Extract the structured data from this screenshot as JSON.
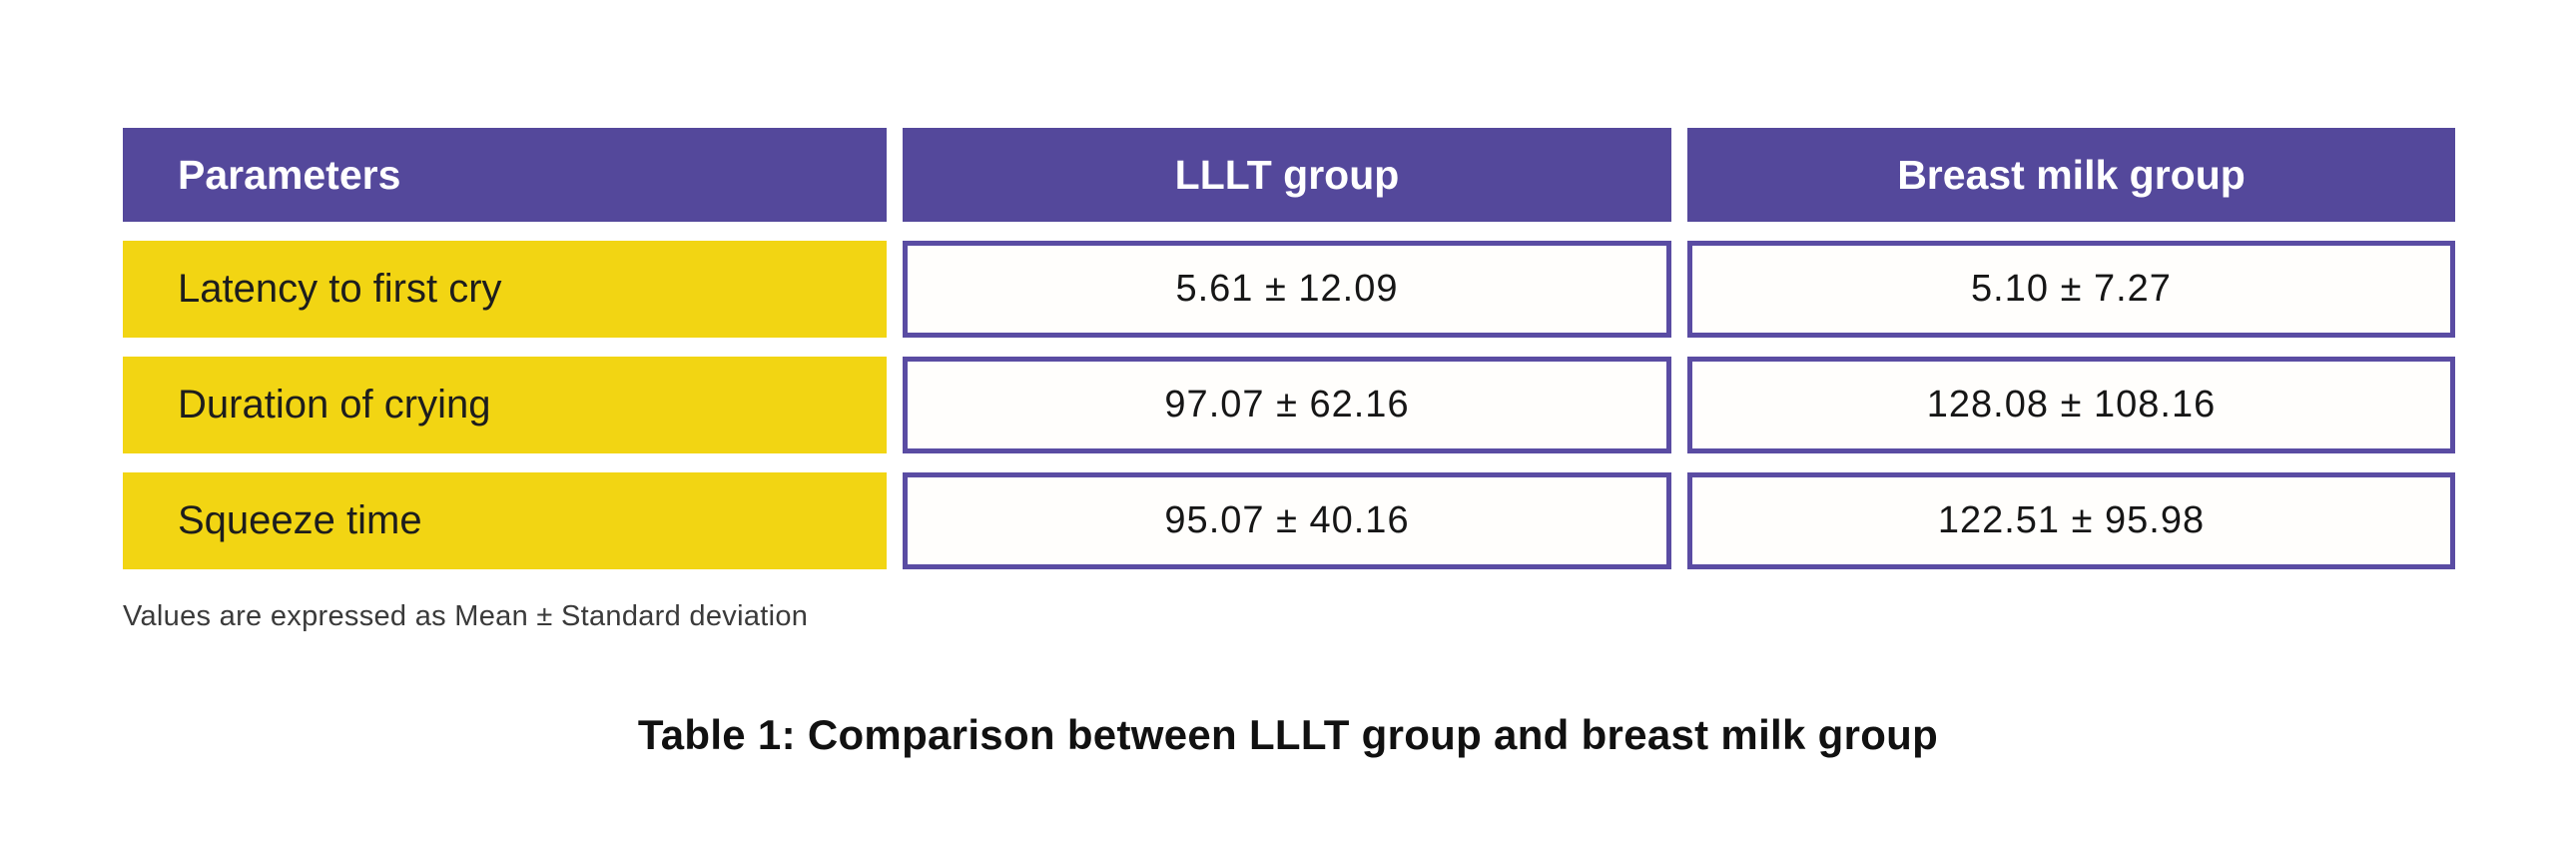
{
  "table": {
    "columns": [
      "Parameters",
      "LLLT group",
      "Breast milk group"
    ],
    "rows": [
      {
        "parameter": "Latency to first cry",
        "lllt": "5.61 ± 12.09",
        "breast_milk": "5.10 ± 7.27"
      },
      {
        "parameter": "Duration of crying",
        "lllt": "97.07 ± 62.16",
        "breast_milk": "128.08 ± 108.16"
      },
      {
        "parameter": "Squeeze time",
        "lllt": "95.07 ± 40.16",
        "breast_milk": "122.51 ± 95.98"
      }
    ],
    "footnote": "Values are expressed as Mean ± Standard deviation",
    "caption": "Table 1: Comparison between LLLT group and breast milk group"
  },
  "colors": {
    "header_purple": "#54489B",
    "row_yellow": "#F2D513",
    "cell_border_purple": "#5A4CA3",
    "background": "#FFFFFF"
  }
}
